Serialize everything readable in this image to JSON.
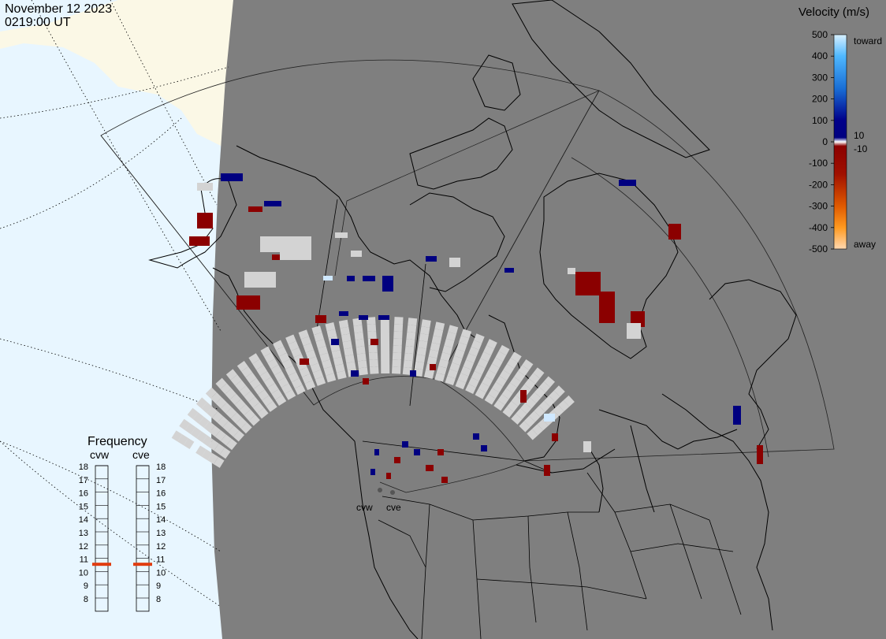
{
  "header": {
    "date": "November 12 2023",
    "time": "0219:00 UT"
  },
  "colorbar": {
    "title": "Velocity (m/s)",
    "ticks": [
      "500",
      "400",
      "300",
      "200",
      "100",
      "0",
      "-100",
      "-200",
      "-300",
      "-400",
      "-500"
    ],
    "inner_ticks": [
      "10",
      "-10"
    ],
    "toward_label": "toward",
    "away_label": "away"
  },
  "frequency": {
    "title": "Frequency",
    "stations": [
      {
        "name": "cvw",
        "value_mhz": 11
      },
      {
        "name": "cve",
        "value_mhz": 11
      }
    ],
    "scale": [
      "18",
      "17",
      "16",
      "15",
      "14",
      "13",
      "12",
      "11",
      "10",
      "9",
      "8"
    ]
  },
  "radar_sites": [
    {
      "label": "cvw"
    },
    {
      "label": "cve"
    }
  ],
  "colors": {
    "map_bg": "#7f7f7f",
    "ocean": "#e8f6ff",
    "land_day": "#fbf8e6",
    "away_strong": "#8b0000",
    "toward_strong": "#000080",
    "ground_scatter": "#d3d3d3",
    "freq_marker": "#e03c10"
  }
}
